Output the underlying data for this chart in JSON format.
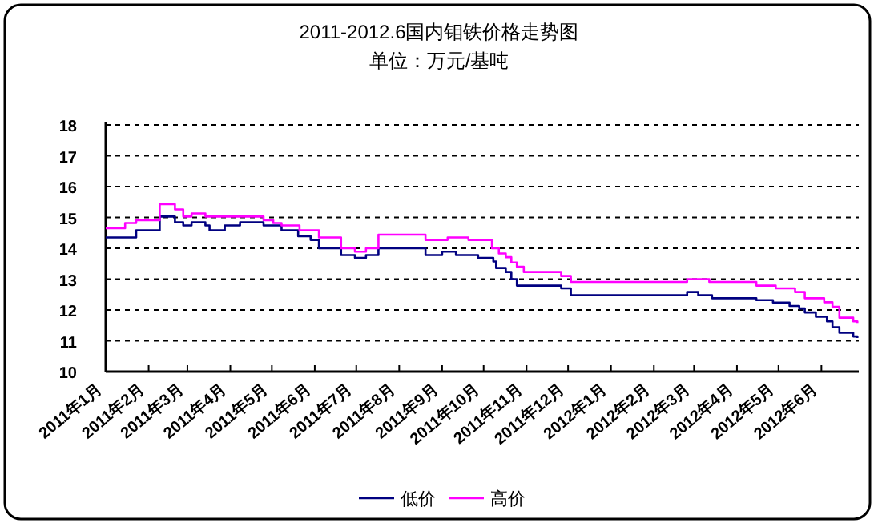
{
  "chart_data": {
    "type": "step",
    "title": "2011-2012.6国内钼铁价格走势图",
    "subtitle": "单位：万元/基吨",
    "xlim": [
      "2011-01-01",
      "2012-06-28"
    ],
    "xticks": [
      {
        "value": "2011-01",
        "label": "2011年1月"
      },
      {
        "value": "2011-02",
        "label": "2011年2月"
      },
      {
        "value": "2011-03",
        "label": "2011年3月"
      },
      {
        "value": "2011-04",
        "label": "2011年4月"
      },
      {
        "value": "2011-05",
        "label": "2011年5月"
      },
      {
        "value": "2011-06",
        "label": "2011年6月"
      },
      {
        "value": "2011-07",
        "label": "2011年7月"
      },
      {
        "value": "2011-08",
        "label": "2011年8月"
      },
      {
        "value": "2011-09",
        "label": "2011年9月"
      },
      {
        "value": "2011-10",
        "label": "2011年10月"
      },
      {
        "value": "2011-11",
        "label": "2011年11月"
      },
      {
        "value": "2011-12",
        "label": "2011年12月"
      },
      {
        "value": "2012-01",
        "label": "2012年1月"
      },
      {
        "value": "2012-02",
        "label": "2012年2月"
      },
      {
        "value": "2012-03",
        "label": "2012年3月"
      },
      {
        "value": "2012-04",
        "label": "2012年4月"
      },
      {
        "value": "2012-05",
        "label": "2012年5月"
      },
      {
        "value": "2012-06",
        "label": "2012年6月"
      }
    ],
    "ylim": [
      10,
      18
    ],
    "yticks": [
      10,
      11,
      12,
      13,
      14,
      15,
      16,
      17,
      18
    ],
    "grid": "y",
    "legend": "bottom",
    "line_style": "solid",
    "series": [
      {
        "name": "低价",
        "color": "#000080",
        "x": [
          "2011-01-01",
          "2011-01-23",
          "2011-02-09",
          "2011-02-20",
          "2011-02-26",
          "2011-03-04",
          "2011-03-14",
          "2011-03-17",
          "2011-03-28",
          "2011-04-08",
          "2011-04-25",
          "2011-05-08",
          "2011-05-20",
          "2011-05-29",
          "2011-06-04",
          "2011-06-20",
          "2011-06-30",
          "2011-07-08",
          "2011-07-17",
          "2011-08-20",
          "2011-09-01",
          "2011-09-11",
          "2011-09-27",
          "2011-10-08",
          "2011-10-10",
          "2011-10-17",
          "2011-10-21",
          "2011-10-25",
          "2011-11-26",
          "2011-12-03",
          "2012-02-25",
          "2012-03-04",
          "2012-03-14",
          "2012-04-15",
          "2012-04-27",
          "2012-05-09",
          "2012-05-16",
          "2012-05-20",
          "2012-05-28",
          "2012-06-05",
          "2012-06-09",
          "2012-06-14",
          "2012-06-24",
          "2012-06-27"
        ],
        "values": [
          14.35,
          14.58,
          15.03,
          14.84,
          14.74,
          14.84,
          14.74,
          14.58,
          14.74,
          14.84,
          14.74,
          14.58,
          14.39,
          14.27,
          14.0,
          13.78,
          13.69,
          13.78,
          14.0,
          13.78,
          13.89,
          13.78,
          13.69,
          13.57,
          13.36,
          13.23,
          13.0,
          12.79,
          12.7,
          12.48,
          12.58,
          12.48,
          12.38,
          12.32,
          12.24,
          12.13,
          12.05,
          11.92,
          11.78,
          11.63,
          11.44,
          11.26,
          11.14,
          11.09
        ]
      },
      {
        "name": "高价",
        "color": "#ff00ff",
        "x": [
          "2011-01-01",
          "2011-01-15",
          "2011-01-23",
          "2011-02-09",
          "2011-02-20",
          "2011-02-26",
          "2011-03-04",
          "2011-03-14",
          "2011-04-25",
          "2011-05-02",
          "2011-05-08",
          "2011-05-21",
          "2011-06-04",
          "2011-06-20",
          "2011-06-30",
          "2011-07-08",
          "2011-07-17",
          "2011-08-20",
          "2011-09-05",
          "2011-09-20",
          "2011-10-07",
          "2011-10-12",
          "2011-10-17",
          "2011-10-21",
          "2011-10-25",
          "2011-10-30",
          "2011-11-26",
          "2011-12-03",
          "2012-02-25",
          "2012-03-12",
          "2012-04-15",
          "2012-04-29",
          "2012-05-13",
          "2012-05-20",
          "2012-06-03",
          "2012-06-09",
          "2012-06-14",
          "2012-06-24",
          "2012-06-27"
        ],
        "values": [
          14.65,
          14.82,
          14.91,
          15.43,
          15.26,
          15.03,
          15.13,
          15.03,
          14.91,
          14.82,
          14.74,
          14.58,
          14.35,
          14.0,
          13.89,
          14.0,
          14.44,
          14.27,
          14.35,
          14.27,
          14.0,
          13.83,
          13.71,
          13.54,
          13.4,
          13.23,
          13.1,
          12.91,
          13.0,
          12.91,
          12.79,
          12.7,
          12.58,
          12.38,
          12.25,
          12.1,
          11.75,
          11.63,
          11.58
        ]
      }
    ]
  }
}
